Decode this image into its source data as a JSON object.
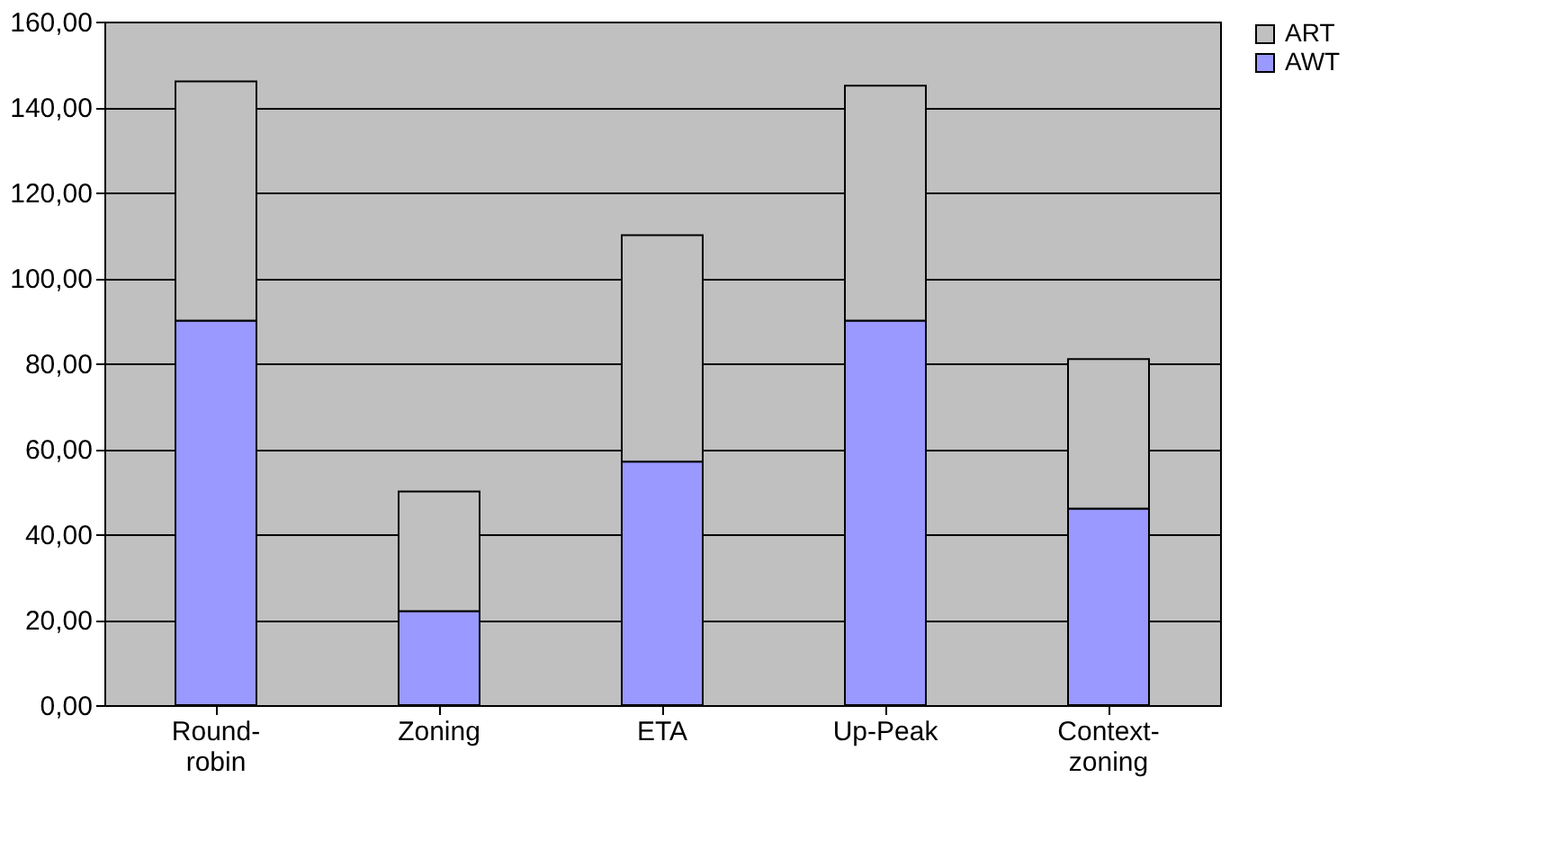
{
  "chart_data": {
    "type": "bar",
    "stacked": true,
    "categories": [
      "Round-robin",
      "Zoning",
      "ETA",
      "Up-Peak",
      "Context-zoning"
    ],
    "series": [
      {
        "name": "AWT",
        "color": "#9999ff",
        "values": [
          90,
          22,
          57,
          90,
          46
        ]
      },
      {
        "name": "ART",
        "color": "#c0c0c0",
        "values": [
          56,
          28,
          53,
          55,
          35
        ]
      }
    ],
    "ylim": [
      0,
      160
    ],
    "yticks": [
      {
        "value": 0,
        "label": "0,00"
      },
      {
        "value": 20,
        "label": "20,00"
      },
      {
        "value": 40,
        "label": "40,00"
      },
      {
        "value": 60,
        "label": "60,00"
      },
      {
        "value": 80,
        "label": "80,00"
      },
      {
        "value": 100,
        "label": "100,00"
      },
      {
        "value": 120,
        "label": "120,00"
      },
      {
        "value": 140,
        "label": "140,00"
      },
      {
        "value": 160,
        "label": "160,00"
      }
    ],
    "grid": "y",
    "legend": "right"
  }
}
